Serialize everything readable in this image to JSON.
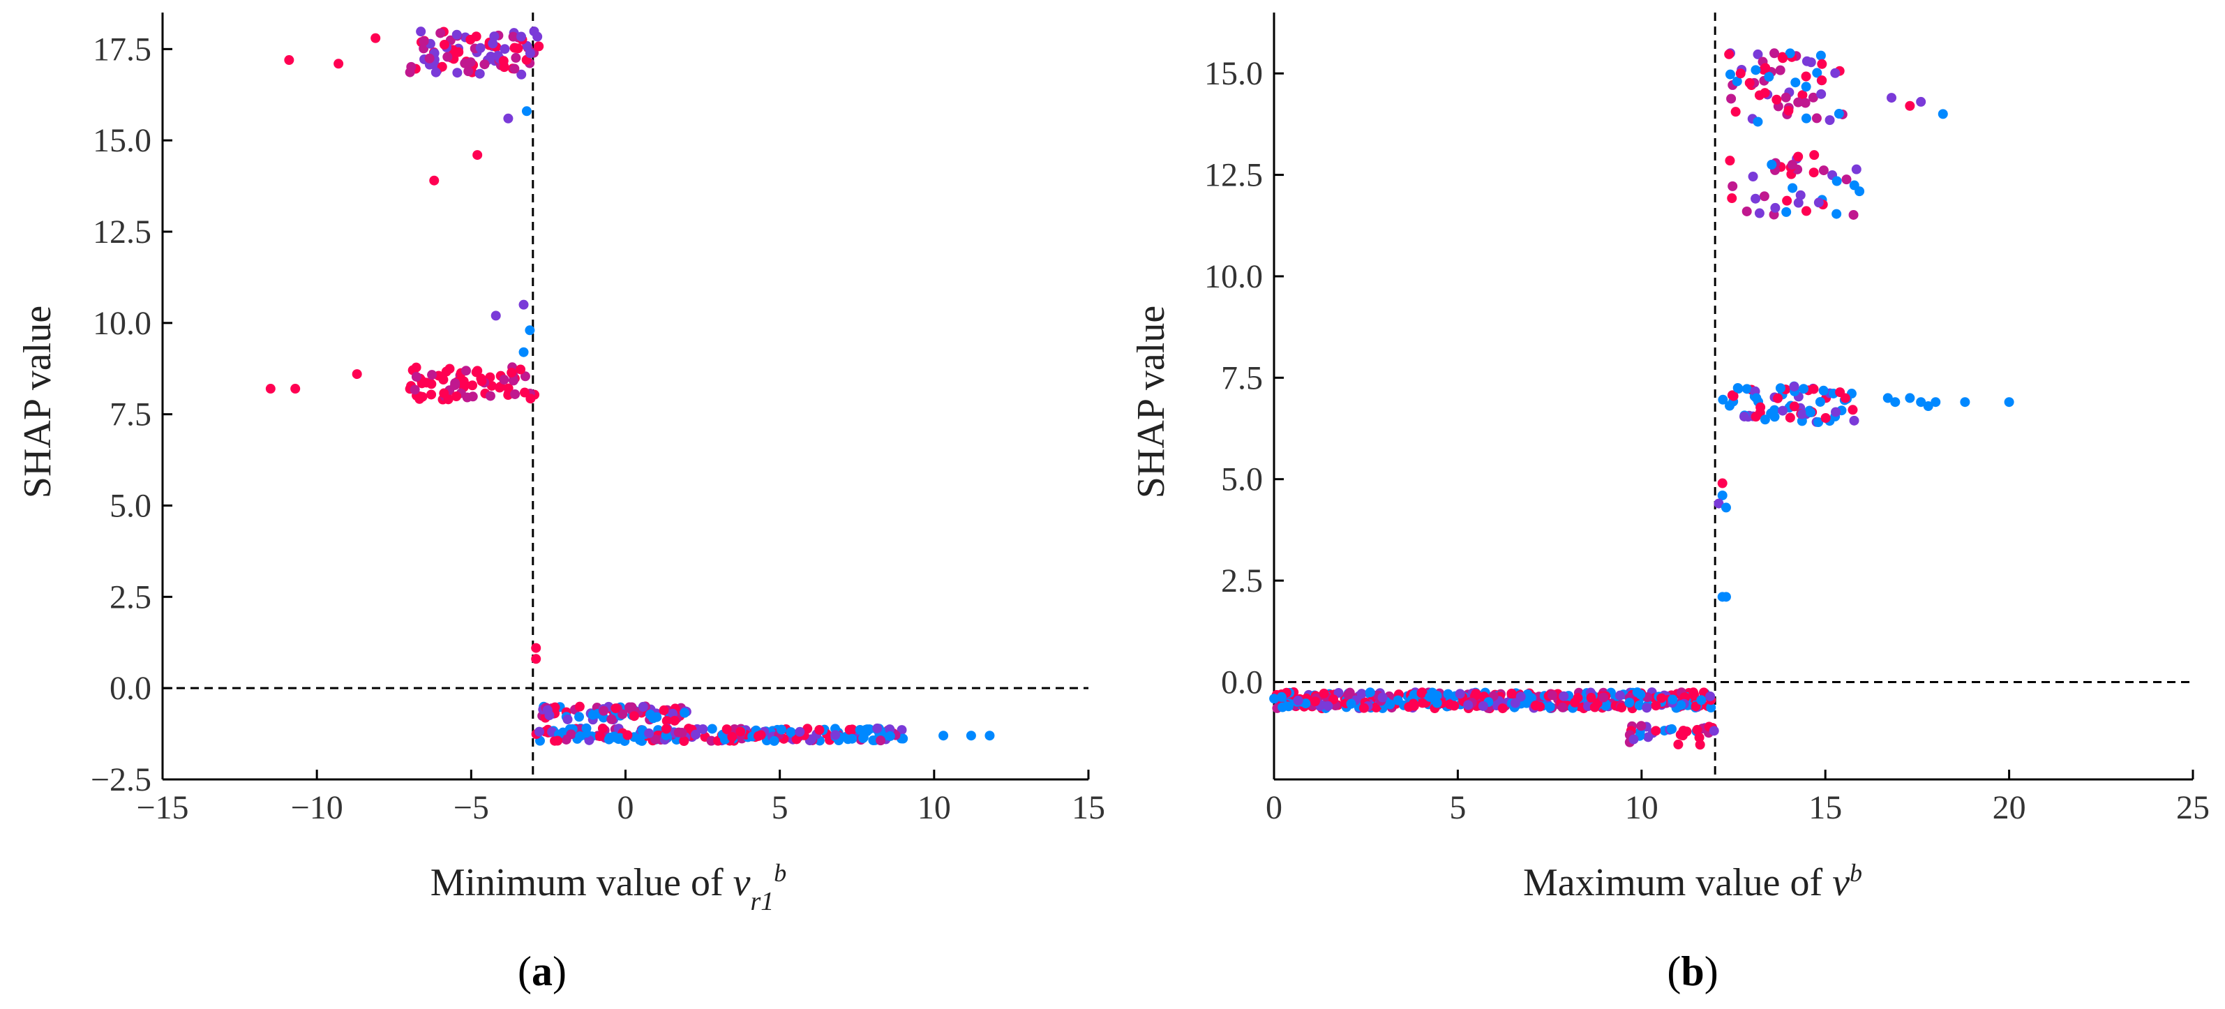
{
  "chart_data": [
    {
      "type": "scatter",
      "panel_label": "(a)",
      "panel_letter": "a",
      "title": "",
      "ylabel": "SHAP value",
      "xlabel": {
        "prefix": "Minimum value of ",
        "var": "v",
        "sub": "r1",
        "sup": "b"
      },
      "xlim": [
        -15,
        15
      ],
      "ylim": [
        -2.5,
        18.5
      ],
      "xticks": [
        -15,
        -10,
        -5,
        0,
        5,
        10,
        15
      ],
      "xtick_labels": [
        "−15",
        "−10",
        "−5",
        "0",
        "5",
        "10",
        "15"
      ],
      "yticks": [
        -2.5,
        0.0,
        2.5,
        5.0,
        7.5,
        10.0,
        12.5,
        15.0,
        17.5
      ],
      "ytick_labels": [
        "−2.5",
        "0.0",
        "2.5",
        "5.0",
        "7.5",
        "10.0",
        "12.5",
        "15.0",
        "17.5"
      ],
      "vline_x": -3.0,
      "hline_y": 0.0,
      "color_scale": {
        "low": "#0088ff",
        "mid": "#7a3ad8",
        "high": "#ff0052"
      },
      "clusters": [
        {
          "name": "top-band",
          "x_range": [
            -7.0,
            -2.8
          ],
          "y_range": [
            16.8,
            18.0
          ],
          "count": 90,
          "colors": [
            "#7a3ad8",
            "#ff0052",
            "#7a3ad8",
            "#c0188f"
          ]
        },
        {
          "name": "top-outliers",
          "points": [
            [
              -10.9,
              17.2
            ],
            [
              -9.3,
              17.1
            ],
            [
              -8.1,
              17.8
            ],
            [
              -6.2,
              13.9
            ],
            [
              -4.8,
              14.6
            ],
            [
              -3.8,
              15.6
            ],
            [
              -3.2,
              15.8
            ]
          ],
          "colors": [
            "#ff0052",
            "#ff0052",
            "#ff0052",
            "#ff0052",
            "#ff0052",
            "#7a3ad8",
            "#0088ff"
          ]
        },
        {
          "name": "mid-band",
          "x_range": [
            -7.0,
            -2.9
          ],
          "y_range": [
            7.9,
            8.8
          ],
          "count": 70,
          "colors": [
            "#ff0052",
            "#ff0052",
            "#c0188f"
          ]
        },
        {
          "name": "mid-outliers",
          "points": [
            [
              -11.5,
              8.2
            ],
            [
              -10.7,
              8.2
            ],
            [
              -8.7,
              8.6
            ],
            [
              -4.2,
              10.2
            ],
            [
              -3.3,
              10.5
            ],
            [
              -3.1,
              9.8
            ],
            [
              -3.3,
              9.2
            ]
          ],
          "colors": [
            "#ff0052",
            "#ff0052",
            "#ff0052",
            "#7a3ad8",
            "#7a3ad8",
            "#0088ff",
            "#0088ff"
          ]
        },
        {
          "name": "near-zero-jump",
          "points": [
            [
              -2.9,
              1.1
            ],
            [
              -2.9,
              0.8
            ]
          ],
          "colors": [
            "#ff0052",
            "#ff0052"
          ]
        },
        {
          "name": "bottom-upper",
          "x_range": [
            -2.9,
            2.0
          ],
          "y_range": [
            -0.9,
            -0.5
          ],
          "count": 80,
          "colors": [
            "#ff0052",
            "#c0188f",
            "#7a3ad8",
            "#0088ff"
          ]
        },
        {
          "name": "bottom-lower",
          "x_range": [
            -2.9,
            9.0
          ],
          "y_range": [
            -1.45,
            -1.1
          ],
          "count": 220,
          "colors": [
            "#0088ff",
            "#0088ff",
            "#7a3ad8",
            "#c0188f",
            "#ff0052"
          ]
        },
        {
          "name": "bottom-tail",
          "points": [
            [
              10.3,
              -1.3
            ],
            [
              11.2,
              -1.3
            ],
            [
              11.8,
              -1.3
            ]
          ],
          "colors": [
            "#0088ff",
            "#0088ff",
            "#0088ff"
          ]
        }
      ]
    },
    {
      "type": "scatter",
      "panel_label": "(b)",
      "panel_letter": "b",
      "title": "",
      "ylabel": "SHAP value",
      "xlabel": {
        "prefix": "Maximum value of ",
        "var": "v",
        "sub": "",
        "sup": "b"
      },
      "xlim": [
        0,
        25
      ],
      "ylim": [
        -2.4,
        16.5
      ],
      "xticks": [
        0,
        5,
        10,
        15,
        20,
        25
      ],
      "xtick_labels": [
        "0",
        "5",
        "10",
        "15",
        "20",
        "25"
      ],
      "yticks": [
        0.0,
        2.5,
        5.0,
        7.5,
        10.0,
        12.5,
        15.0
      ],
      "ytick_labels": [
        "0.0",
        "2.5",
        "5.0",
        "7.5",
        "10.0",
        "12.5",
        "15.0"
      ],
      "vline_x": 12.0,
      "hline_y": 0.0,
      "color_scale": {
        "low": "#0088ff",
        "mid": "#7a3ad8",
        "high": "#ff0052"
      },
      "clusters": [
        {
          "name": "top-band",
          "x_range": [
            12.3,
            15.6
          ],
          "y_range": [
            13.8,
            15.5
          ],
          "count": 60,
          "colors": [
            "#ff0052",
            "#7a3ad8",
            "#c0188f",
            "#0088ff"
          ]
        },
        {
          "name": "top-outliers",
          "points": [
            [
              16.8,
              14.4
            ],
            [
              17.3,
              14.2
            ],
            [
              17.6,
              14.3
            ],
            [
              18.2,
              14.0
            ],
            [
              14.5,
              15.3
            ]
          ],
          "colors": [
            "#7a3ad8",
            "#ff0052",
            "#7a3ad8",
            "#0088ff",
            "#7a3ad8"
          ]
        },
        {
          "name": "mid-upper-band",
          "x_range": [
            12.3,
            16.2
          ],
          "y_range": [
            11.5,
            13.0
          ],
          "count": 40,
          "colors": [
            "#ff0052",
            "#7a3ad8",
            "#0088ff",
            "#c0188f"
          ]
        },
        {
          "name": "mid-band",
          "x_range": [
            12.2,
            15.8
          ],
          "y_range": [
            6.4,
            7.3
          ],
          "count": 70,
          "colors": [
            "#0088ff",
            "#0088ff",
            "#7a3ad8",
            "#ff0052"
          ]
        },
        {
          "name": "mid-tail",
          "points": [
            [
              16.9,
              6.9
            ],
            [
              17.3,
              7.0
            ],
            [
              17.6,
              6.9
            ],
            [
              18.0,
              6.9
            ],
            [
              18.8,
              6.9
            ],
            [
              20.0,
              6.9
            ],
            [
              16.7,
              7.0
            ],
            [
              17.8,
              6.8
            ]
          ],
          "colors": [
            "#0088ff",
            "#0088ff",
            "#0088ff",
            "#0088ff",
            "#0088ff",
            "#0088ff",
            "#0088ff",
            "#0088ff"
          ]
        },
        {
          "name": "jump",
          "points": [
            [
              12.2,
              4.9
            ],
            [
              12.2,
              4.6
            ],
            [
              12.1,
              4.4
            ],
            [
              12.3,
              4.3
            ],
            [
              12.2,
              2.1
            ],
            [
              12.3,
              2.1
            ]
          ],
          "colors": [
            "#ff0052",
            "#0088ff",
            "#7a3ad8",
            "#0088ff",
            "#0088ff",
            "#0088ff"
          ]
        },
        {
          "name": "bottom-band",
          "x_range": [
            0.0,
            12.0
          ],
          "y_range": [
            -0.65,
            -0.25
          ],
          "count": 420,
          "colors": [
            "#0088ff",
            "#ff0052",
            "#7a3ad8",
            "#c0188f",
            "#0088ff",
            "#ff0052"
          ]
        },
        {
          "name": "bottom-lower",
          "x_range": [
            9.6,
            12.0
          ],
          "y_range": [
            -1.55,
            -1.05
          ],
          "count": 30,
          "colors": [
            "#ff0052",
            "#7a3ad8",
            "#0088ff",
            "#c0188f"
          ]
        }
      ]
    }
  ]
}
